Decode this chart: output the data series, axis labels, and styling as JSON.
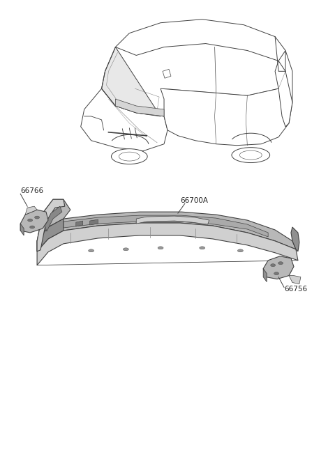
{
  "background_color": "#ffffff",
  "fig_width": 4.8,
  "fig_height": 6.56,
  "dpi": 100,
  "line_color": "#404040",
  "part_gray": "#b8b8b8",
  "part_dark": "#909090",
  "part_light": "#d0d0d0",
  "text_color": "#222222",
  "font_size": 7.5,
  "label_66766": "66766",
  "label_66700A": "66700A",
  "label_66756": "66756"
}
